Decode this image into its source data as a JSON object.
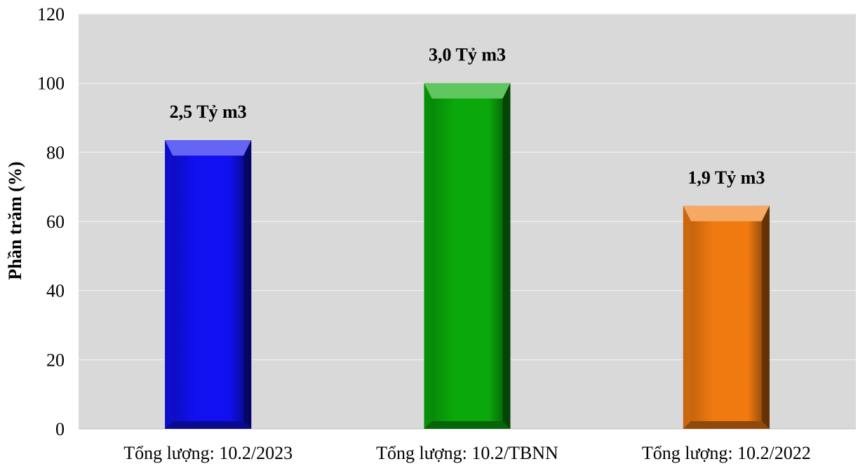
{
  "chart_data": {
    "type": "bar",
    "categories": [
      "Tổng lượng: 10.2/2023",
      "Tổng lượng: 10.2/TBNN",
      "Tổng lượng: 10.2/2022"
    ],
    "values": [
      83.5,
      100,
      64.5
    ],
    "data_labels": [
      "2,5 Tỷ m3",
      "3,0 Tỷ m3",
      "1,9 Tỷ m3"
    ],
    "colors": [
      "#1010f0",
      "#0aa80a",
      "#f07a10"
    ],
    "title": "",
    "xlabel": "",
    "ylabel": "Phần trăm (%)",
    "ylim": [
      0,
      120
    ],
    "yticks": [
      "0",
      "20",
      "40",
      "60",
      "80",
      "100",
      "120"
    ],
    "grid": true,
    "plot_background": "#d9d9d9"
  }
}
